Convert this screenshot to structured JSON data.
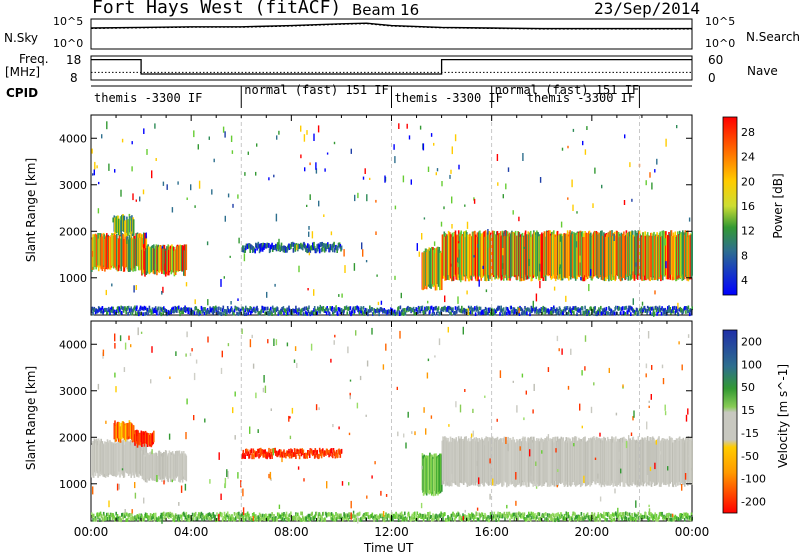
{
  "header": {
    "title": "Fort Hays West (fitACF)",
    "beam": "Beam 16",
    "date": "23/Sep/2014"
  },
  "strip_labels": {
    "nsky": "N.Sky",
    "nsearch": "N.Search",
    "freq_line1": "Freq.",
    "freq_line2": "[MHz]",
    "nave": "Nave",
    "cpid": "CPID",
    "nsky_ticks": [
      "10^5",
      "10^0"
    ],
    "nsearch_ticks": [
      "10^5",
      "10^0"
    ],
    "freq_ticks": [
      "18",
      "8"
    ],
    "nave_ticks": [
      "60",
      "0"
    ]
  },
  "cpid_segments": [
    {
      "start_hour": 0.0,
      "label": "themis -3300 IF"
    },
    {
      "start_hour": 6.0,
      "label": "normal (fast) 151 IF"
    },
    {
      "start_hour": 12.0,
      "label": "themis -3300 IF"
    },
    {
      "start_hour": 16.0,
      "label": "normal (fast) 151 IF"
    },
    {
      "start_hour": 16.0,
      "label": "themis -3300 IF"
    }
  ],
  "chart_data": [
    {
      "type": "line",
      "panel": "sky-noise",
      "ylabel": "N.Sky",
      "y2label": "N.Search",
      "x": [
        0,
        2,
        4,
        6,
        8,
        10,
        11,
        12,
        14,
        16,
        18,
        20,
        22,
        24
      ],
      "series": [
        {
          "name": "N.Sky",
          "values": [
            3.5,
            3.6,
            3.7,
            3.7,
            3.9,
            4.2,
            4.3,
            3.9,
            3.6,
            3.5,
            3.4,
            3.4,
            3.4,
            3.4
          ]
        },
        {
          "name": "N.Search",
          "values": [
            3.4,
            3.5,
            3.6,
            3.6,
            3.8,
            4.1,
            4.2,
            3.8,
            3.5,
            3.4,
            3.3,
            3.3,
            3.3,
            3.3
          ]
        }
      ]
    },
    {
      "type": "line",
      "panel": "frequency-nave",
      "ylabel": "Freq. [MHz]",
      "y2label": "Nave",
      "ylim": [
        8,
        18
      ],
      "y2lim": [
        0,
        60
      ],
      "x": [
        0,
        2,
        2,
        14,
        14,
        24
      ],
      "series": [
        {
          "name": "Freq.",
          "values": [
            16.5,
            16.5,
            10.5,
            10.5,
            16.5,
            16.5
          ]
        },
        {
          "name": "Nave",
          "values": [
            19,
            19,
            19,
            19,
            19,
            19
          ]
        }
      ]
    },
    {
      "type": "heatmap",
      "panel": "power",
      "xlabel": "",
      "ylabel": "Slant Range [km]",
      "xlim": [
        0,
        24
      ],
      "ylim": [
        200,
        4500
      ],
      "yticks": [
        1000,
        2000,
        3000,
        4000
      ],
      "colorbar": {
        "label": "Power [dB]",
        "ticks": [
          28,
          24,
          20,
          16,
          12,
          8,
          4
        ],
        "colors": [
          "#ff0000",
          "#ff3300",
          "#ff6600",
          "#ff9900",
          "#ffcc00",
          "#ffff00",
          "#ccff33",
          "#66cc33",
          "#339933",
          "#2e8b57",
          "#2e6f8e",
          "#1f3fa8",
          "#0000ff"
        ]
      },
      "regions": [
        {
          "x0": 0.0,
          "x1": 2.2,
          "r0": 1200,
          "r1": 1900,
          "level": "high"
        },
        {
          "x0": 0.9,
          "x1": 1.7,
          "r0": 1950,
          "r1": 2300,
          "level": "mid"
        },
        {
          "x0": 2.0,
          "x1": 3.8,
          "r0": 1100,
          "r1": 1650,
          "level": "high"
        },
        {
          "x0": 6.0,
          "x1": 10.0,
          "r0": 1600,
          "r1": 1700,
          "level": "low"
        },
        {
          "x0": 13.2,
          "x1": 14.0,
          "r0": 800,
          "r1": 1600,
          "level": "high"
        },
        {
          "x0": 14.0,
          "x1": 24.0,
          "r0": 1000,
          "r1": 1950,
          "level": "high"
        },
        {
          "x0": 0.0,
          "x1": 24.0,
          "r0": 250,
          "r1": 330,
          "level": "low"
        }
      ]
    },
    {
      "type": "heatmap",
      "panel": "velocity",
      "xlabel": "Time UT",
      "ylabel": "Slant Range [km]",
      "xlim": [
        0,
        24
      ],
      "ylim": [
        200,
        4500
      ],
      "xticks": [
        "00:00",
        "04:00",
        "08:00",
        "12:00",
        "16:00",
        "20:00",
        "00:00"
      ],
      "yticks": [
        1000,
        2000,
        3000,
        4000
      ],
      "colorbar": {
        "label": "Velocity [m s^-1]",
        "ticks": [
          200,
          100,
          50,
          15,
          -15,
          -50,
          -100,
          -200
        ],
        "colors": [
          "#1f2fa8",
          "#1f4fc8",
          "#2e6f8e",
          "#339933",
          "#66cc33",
          "#99dd66",
          "#c8c8c0",
          "#c8c8c0",
          "#ffcc00",
          "#ff9900",
          "#ff6600",
          "#ff3300",
          "#ff0000"
        ]
      },
      "regions": [
        {
          "x0": 0.0,
          "x1": 2.2,
          "r0": 1200,
          "r1": 1900,
          "level": "ground"
        },
        {
          "x0": 0.9,
          "x1": 1.7,
          "r0": 1950,
          "r1": 2300,
          "level": "away"
        },
        {
          "x0": 1.7,
          "x1": 2.5,
          "r0": 1850,
          "r1": 2100,
          "level": "strong-away"
        },
        {
          "x0": 2.0,
          "x1": 3.8,
          "r0": 1100,
          "r1": 1650,
          "level": "ground"
        },
        {
          "x0": 6.0,
          "x1": 10.0,
          "r0": 1600,
          "r1": 1700,
          "level": "strong-away"
        },
        {
          "x0": 13.2,
          "x1": 14.0,
          "r0": 800,
          "r1": 1600,
          "level": "toward"
        },
        {
          "x0": 14.0,
          "x1": 24.0,
          "r0": 1000,
          "r1": 1950,
          "level": "ground"
        },
        {
          "x0": 0.0,
          "x1": 24.0,
          "r0": 250,
          "r1": 330,
          "level": "toward"
        }
      ]
    }
  ]
}
